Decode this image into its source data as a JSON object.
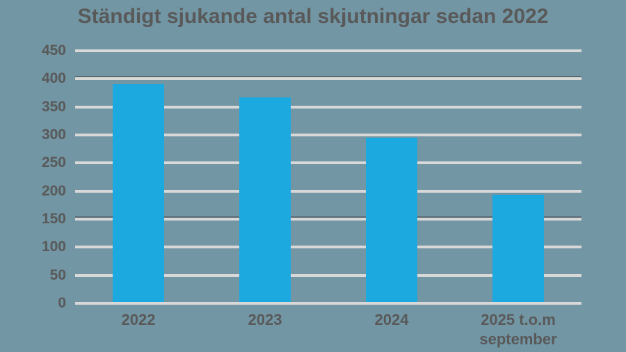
{
  "title": "Ständigt sjukande antal skjutningar sedan 2022",
  "colors": {
    "background": "#7296A4",
    "bar": "#1CA9E0",
    "gridline": "#D8D8D8",
    "gridline_dark_edge": "#5A6A72",
    "text": "#595959"
  },
  "chart_data": {
    "type": "bar",
    "title": "Ständigt sjukande antal skjutningar sedan 2022",
    "categories": [
      "2022",
      "2023",
      "2024",
      "2025 t.o.m september"
    ],
    "category_label_lines": [
      [
        "2022"
      ],
      [
        "2023"
      ],
      [
        "2024"
      ],
      [
        "2025 t.o.m",
        "september"
      ]
    ],
    "values": [
      390,
      367,
      295,
      193
    ],
    "xlabel": "",
    "ylabel": "",
    "ylim": [
      0,
      450
    ],
    "y_ticks": [
      0,
      50,
      100,
      150,
      200,
      250,
      300,
      350,
      400,
      450
    ],
    "grid": "horizontal",
    "grid_dark_edge_ticks": [
      400,
      150
    ],
    "legend": "none"
  }
}
